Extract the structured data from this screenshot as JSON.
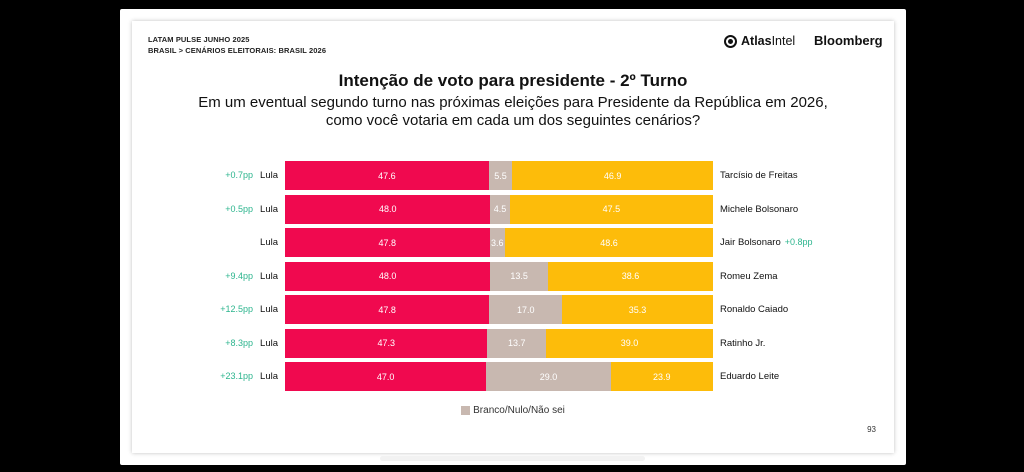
{
  "header": {
    "line1": "LATAM PULSE JUNHO 2025",
    "line2": "BRASIL > CENÁRIOS ELEITORAIS: BRASIL 2026",
    "logo_atlas_bold": "Atlas",
    "logo_atlas_light": "Intel",
    "logo_bloomberg": "Bloomberg"
  },
  "page_number": "93",
  "colors": {
    "left": "#f0094f",
    "middle": "#c8b8b0",
    "right": "#fdbc0a",
    "change": "#2db58e"
  },
  "chart_data": {
    "type": "bar",
    "orientation": "horizontal",
    "stacked": true,
    "title": "Intenção de voto para presidente - 2º Turno",
    "subtitle_lines": [
      "Em um eventual segundo turno nas próximas eleições para Presidente da República em 2026,",
      "como você votaria em cada um dos seguintes cenários?"
    ],
    "legend": [
      "Branco/Nulo/Não sei"
    ],
    "rows": [
      {
        "left_label": "Lula",
        "left_change": "+0.7pp",
        "left": 47.6,
        "middle": 5.5,
        "right": 46.9,
        "right_label": "Tarcísio de Freitas",
        "right_change": ""
      },
      {
        "left_label": "Lula",
        "left_change": "+0.5pp",
        "left": 48.0,
        "middle": 4.5,
        "right": 47.5,
        "right_label": "Michele Bolsonaro",
        "right_change": ""
      },
      {
        "left_label": "Lula",
        "left_change": "",
        "left": 47.8,
        "middle": 3.6,
        "right": 48.6,
        "right_label": "Jair Bolsonaro",
        "right_change": "+0.8pp"
      },
      {
        "left_label": "Lula",
        "left_change": "+9.4pp",
        "left": 48.0,
        "middle": 13.5,
        "right": 38.6,
        "right_label": "Romeu Zema",
        "right_change": ""
      },
      {
        "left_label": "Lula",
        "left_change": "+12.5pp",
        "left": 47.8,
        "middle": 17.0,
        "right": 35.3,
        "right_label": "Ronaldo Caiado",
        "right_change": ""
      },
      {
        "left_label": "Lula",
        "left_change": "+8.3pp",
        "left": 47.3,
        "middle": 13.7,
        "right": 39.0,
        "right_label": "Ratinho Jr.",
        "right_change": ""
      },
      {
        "left_label": "Lula",
        "left_change": "+23.1pp",
        "left": 47.0,
        "middle": 29.0,
        "right": 23.9,
        "right_label": "Eduardo Leite",
        "right_change": ""
      }
    ]
  }
}
